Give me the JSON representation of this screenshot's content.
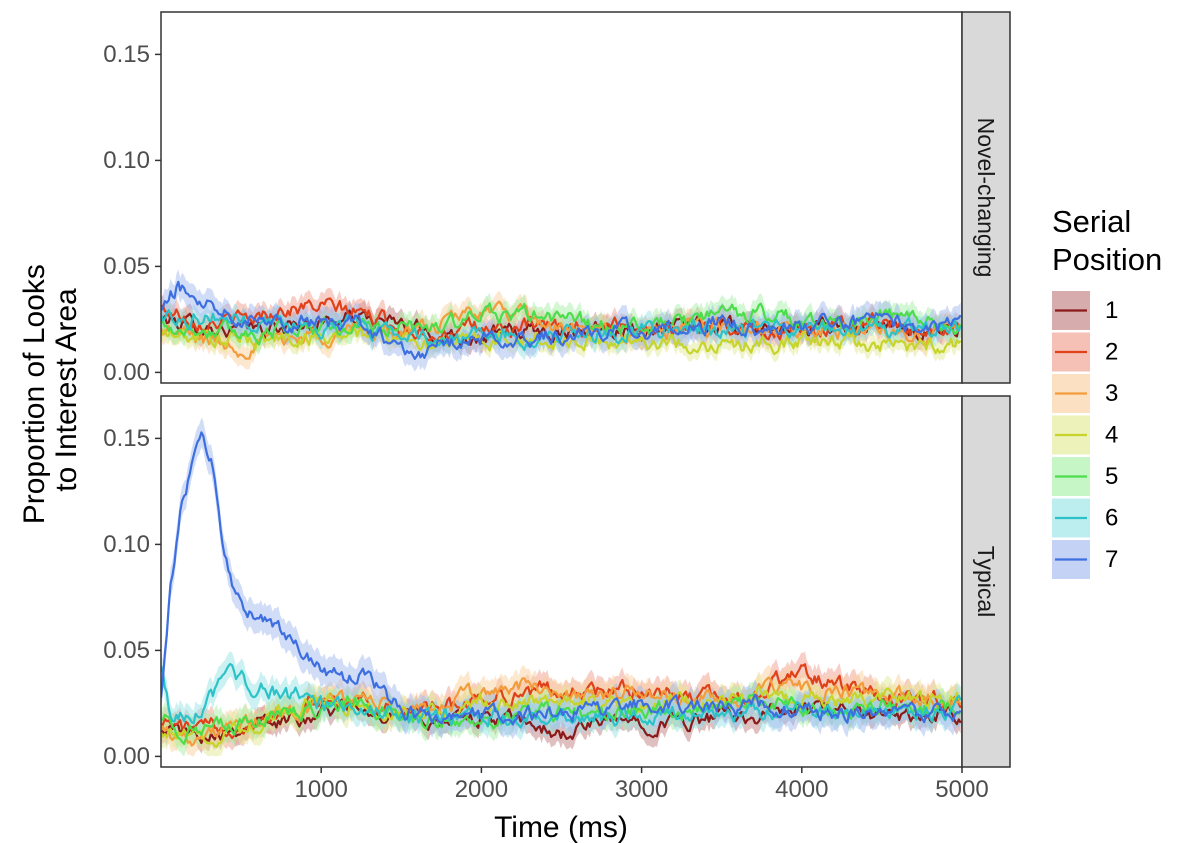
{
  "chart_data": {
    "type": "line",
    "xlabel": "Time (ms)",
    "ylabel_lines": [
      "Proportion of Looks",
      "to Interest Area"
    ],
    "xlim": [
      0,
      5000
    ],
    "ylim": [
      -0.005,
      0.17
    ],
    "x_ticks": [
      1000,
      2000,
      3000,
      4000,
      5000
    ],
    "y_ticks": [
      0.0,
      0.05,
      0.1,
      0.15
    ],
    "x_tick_labels": [
      "1000",
      "2000",
      "3000",
      "4000",
      "5000"
    ],
    "y_tick_labels": [
      "0.00",
      "0.05",
      "0.10",
      "0.15"
    ],
    "grid": false,
    "legend": {
      "title_lines": [
        "Serial",
        "Position"
      ],
      "placement": "right",
      "entries": [
        {
          "label": "1",
          "color": "#8B1A1A",
          "fill": "#C08080"
        },
        {
          "label": "2",
          "color": "#E0401A",
          "fill": "#F0A090"
        },
        {
          "label": "3",
          "color": "#F39C3C",
          "fill": "#F9CFA0"
        },
        {
          "label": "4",
          "color": "#C7D42B",
          "fill": "#E3EA95"
        },
        {
          "label": "5",
          "color": "#4CDD4C",
          "fill": "#A8EFA8"
        },
        {
          "label": "6",
          "color": "#2CC3C8",
          "fill": "#98E3E6"
        },
        {
          "label": "7",
          "color": "#3E6FE0",
          "fill": "#A4BAF0"
        }
      ]
    },
    "facets": [
      {
        "label": "Novel-changing",
        "series": [
          {
            "name": "1",
            "x": [
              0,
              250,
              500,
              750,
              1000,
              1250,
              1500,
              1750,
              2000,
              2250,
              2500,
              2750,
              3000,
              3250,
              3500,
              3750,
              4000,
              4250,
              4500,
              4750,
              5000
            ],
            "y": [
              0.025,
              0.022,
              0.02,
              0.021,
              0.024,
              0.026,
              0.022,
              0.018,
              0.017,
              0.019,
              0.02,
              0.022,
              0.021,
              0.02,
              0.022,
              0.021,
              0.02,
              0.022,
              0.021,
              0.02,
              0.022
            ],
            "band": 0.005
          },
          {
            "name": "2",
            "x": [
              0,
              250,
              500,
              750,
              1000,
              1250,
              1500,
              1750,
              2000,
              2250,
              2500,
              2750,
              3000,
              3250,
              3500,
              3750,
              4000,
              4250,
              4500,
              4750,
              5000
            ],
            "y": [
              0.03,
              0.025,
              0.024,
              0.03,
              0.031,
              0.028,
              0.021,
              0.019,
              0.02,
              0.021,
              0.02,
              0.023,
              0.022,
              0.021,
              0.022,
              0.02,
              0.019,
              0.023,
              0.024,
              0.021,
              0.02
            ],
            "band": 0.005
          },
          {
            "name": "3",
            "x": [
              0,
              250,
              500,
              750,
              1000,
              1250,
              1500,
              1750,
              2000,
              2250,
              2500,
              2750,
              3000,
              3250,
              3500,
              3750,
              4000,
              4250,
              4500,
              4750,
              5000
            ],
            "y": [
              0.02,
              0.016,
              0.012,
              0.016,
              0.018,
              0.02,
              0.019,
              0.022,
              0.03,
              0.026,
              0.02,
              0.018,
              0.019,
              0.02,
              0.021,
              0.02,
              0.018,
              0.019,
              0.02,
              0.018,
              0.019
            ],
            "band": 0.005
          },
          {
            "name": "4",
            "x": [
              0,
              250,
              500,
              750,
              1000,
              1250,
              1500,
              1750,
              2000,
              2250,
              2500,
              2750,
              3000,
              3250,
              3500,
              3750,
              4000,
              4250,
              4500,
              4750,
              5000
            ],
            "y": [
              0.018,
              0.016,
              0.015,
              0.016,
              0.017,
              0.018,
              0.016,
              0.014,
              0.015,
              0.016,
              0.015,
              0.014,
              0.015,
              0.014,
              0.013,
              0.013,
              0.015,
              0.014,
              0.013,
              0.012,
              0.014
            ],
            "band": 0.004
          },
          {
            "name": "5",
            "x": [
              0,
              250,
              500,
              750,
              1000,
              1250,
              1500,
              1750,
              2000,
              2250,
              2500,
              2750,
              3000,
              3250,
              3500,
              3750,
              4000,
              4250,
              4500,
              4750,
              5000
            ],
            "y": [
              0.022,
              0.02,
              0.019,
              0.02,
              0.021,
              0.022,
              0.02,
              0.022,
              0.026,
              0.028,
              0.025,
              0.022,
              0.021,
              0.024,
              0.027,
              0.028,
              0.024,
              0.023,
              0.027,
              0.022,
              0.021
            ],
            "band": 0.005
          },
          {
            "name": "6",
            "x": [
              0,
              250,
              500,
              750,
              1000,
              1250,
              1500,
              1750,
              2000,
              2250,
              2500,
              2750,
              3000,
              3250,
              3500,
              3750,
              4000,
              4250,
              4500,
              4750,
              5000
            ],
            "y": [
              0.026,
              0.027,
              0.025,
              0.024,
              0.022,
              0.022,
              0.018,
              0.016,
              0.016,
              0.017,
              0.016,
              0.018,
              0.02,
              0.021,
              0.02,
              0.019,
              0.02,
              0.021,
              0.02,
              0.019,
              0.021
            ],
            "band": 0.005
          },
          {
            "name": "7",
            "x": [
              0,
              100,
              250,
              500,
              750,
              1000,
              1250,
              1500,
              1550,
              1750,
              2000,
              2250,
              2500,
              2750,
              3000,
              3250,
              3500,
              3750,
              4000,
              4250,
              4500,
              4750,
              5000
            ],
            "y": [
              0.028,
              0.04,
              0.035,
              0.028,
              0.025,
              0.023,
              0.022,
              0.012,
              0.007,
              0.012,
              0.016,
              0.017,
              0.018,
              0.019,
              0.02,
              0.022,
              0.024,
              0.021,
              0.022,
              0.023,
              0.025,
              0.021,
              0.022
            ],
            "band": 0.006
          }
        ]
      },
      {
        "label": "Typical",
        "series": [
          {
            "name": "1",
            "x": [
              0,
              100,
              250,
              500,
              750,
              1000,
              1250,
              1500,
              1750,
              2000,
              2250,
              2500,
              2750,
              3000,
              3250,
              3500,
              3750,
              4000,
              4250,
              4500,
              4750,
              5000
            ],
            "y": [
              0.016,
              0.012,
              0.011,
              0.015,
              0.016,
              0.022,
              0.025,
              0.019,
              0.017,
              0.018,
              0.016,
              0.01,
              0.016,
              0.017,
              0.016,
              0.018,
              0.02,
              0.022,
              0.021,
              0.019,
              0.018,
              0.02
            ],
            "band": 0.005
          },
          {
            "name": "2",
            "x": [
              0,
              100,
              250,
              500,
              750,
              1000,
              1250,
              1500,
              1750,
              2000,
              2250,
              2500,
              2750,
              3000,
              3250,
              3500,
              3750,
              4000,
              4250,
              4500,
              4750,
              5000
            ],
            "y": [
              0.018,
              0.014,
              0.012,
              0.016,
              0.022,
              0.026,
              0.027,
              0.02,
              0.022,
              0.028,
              0.03,
              0.031,
              0.03,
              0.032,
              0.028,
              0.027,
              0.031,
              0.04,
              0.032,
              0.028,
              0.026,
              0.025
            ],
            "band": 0.006
          },
          {
            "name": "3",
            "x": [
              0,
              100,
              250,
              500,
              750,
              1000,
              1250,
              1500,
              1750,
              2000,
              2250,
              2500,
              2750,
              3000,
              3250,
              3500,
              3750,
              4000,
              4250,
              4500,
              4750,
              5000
            ],
            "y": [
              0.015,
              0.01,
              0.009,
              0.014,
              0.02,
              0.025,
              0.028,
              0.021,
              0.023,
              0.03,
              0.033,
              0.03,
              0.028,
              0.031,
              0.027,
              0.026,
              0.03,
              0.032,
              0.03,
              0.028,
              0.027,
              0.026
            ],
            "band": 0.006
          },
          {
            "name": "4",
            "x": [
              0,
              100,
              250,
              500,
              750,
              1000,
              1250,
              1500,
              1750,
              2000,
              2250,
              2500,
              2750,
              3000,
              3250,
              3500,
              3750,
              4000,
              4250,
              4500,
              4750,
              5000
            ],
            "y": [
              0.014,
              0.01,
              0.008,
              0.013,
              0.022,
              0.027,
              0.024,
              0.02,
              0.02,
              0.024,
              0.026,
              0.025,
              0.024,
              0.024,
              0.025,
              0.026,
              0.03,
              0.028,
              0.027,
              0.029,
              0.027,
              0.03
            ],
            "band": 0.006
          },
          {
            "name": "5",
            "x": [
              0,
              100,
              250,
              500,
              750,
              1000,
              1250,
              1500,
              1750,
              2000,
              2250,
              2500,
              2750,
              3000,
              3250,
              3500,
              3750,
              4000,
              4250,
              4500,
              4750,
              5000
            ],
            "y": [
              0.02,
              0.014,
              0.011,
              0.015,
              0.02,
              0.024,
              0.026,
              0.02,
              0.016,
              0.017,
              0.019,
              0.021,
              0.02,
              0.022,
              0.021,
              0.024,
              0.025,
              0.023,
              0.022,
              0.024,
              0.023,
              0.022
            ],
            "band": 0.006
          },
          {
            "name": "6",
            "x": [
              0,
              50,
              150,
              300,
              450,
              500,
              750,
              1000,
              1250,
              1500,
              1750,
              2000,
              2250,
              2500,
              2750,
              3000,
              3250,
              3500,
              3750,
              4000,
              4250,
              4500,
              4750,
              5000
            ],
            "y": [
              0.045,
              0.022,
              0.018,
              0.027,
              0.037,
              0.035,
              0.03,
              0.025,
              0.024,
              0.019,
              0.018,
              0.02,
              0.018,
              0.02,
              0.019,
              0.021,
              0.019,
              0.02,
              0.022,
              0.021,
              0.02,
              0.022,
              0.021,
              0.022
            ],
            "band": 0.006
          },
          {
            "name": "7",
            "x": [
              0,
              60,
              120,
              200,
              260,
              320,
              380,
              450,
              500,
              550,
              650,
              750,
              850,
              1000,
              1150,
              1300,
              1400,
              1500,
              1750,
              2000,
              2250,
              2500,
              2750,
              3000,
              3250,
              3500,
              3750,
              4000,
              4250,
              4500,
              4750,
              5000
            ],
            "y": [
              0.03,
              0.08,
              0.115,
              0.14,
              0.148,
              0.138,
              0.1,
              0.082,
              0.07,
              0.068,
              0.064,
              0.058,
              0.05,
              0.04,
              0.036,
              0.038,
              0.03,
              0.022,
              0.018,
              0.02,
              0.019,
              0.021,
              0.022,
              0.025,
              0.023,
              0.022,
              0.024,
              0.022,
              0.021,
              0.022,
              0.02,
              0.022
            ],
            "band": 0.007
          }
        ]
      }
    ]
  }
}
